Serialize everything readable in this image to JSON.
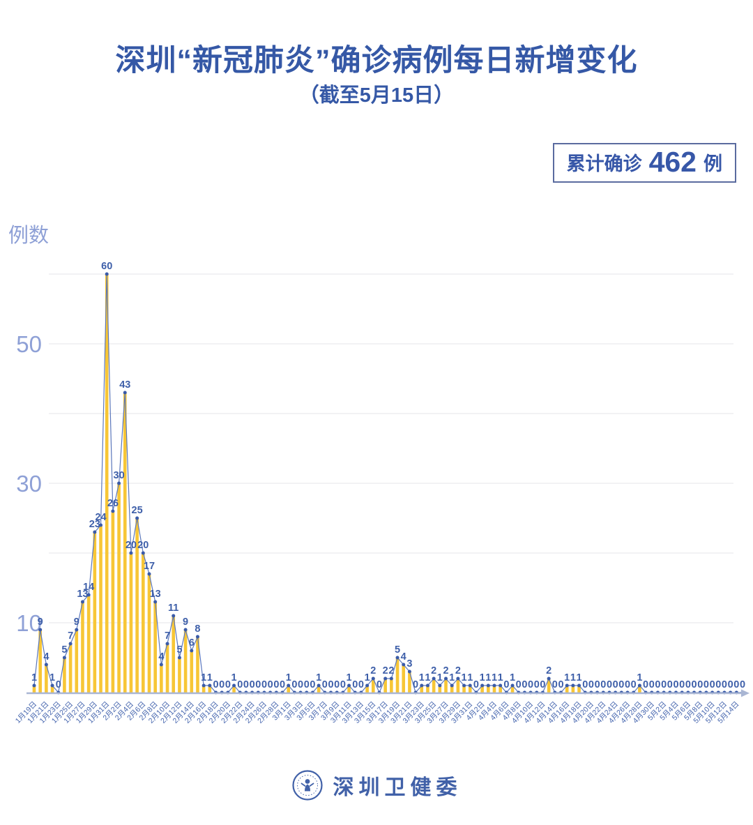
{
  "title": "深圳“新冠肺炎”确诊病例每日新增变化",
  "subtitle": "（截至5月15日）",
  "badge": {
    "prefix": "累计确诊",
    "value": "462",
    "suffix": "例"
  },
  "y_axis_title": "例数",
  "footer": {
    "org": "深圳卫健委",
    "logo": "shenzhen-health-commission-emblem"
  },
  "colors": {
    "title_blue": "#3558A6",
    "label_blue": "#3E5FA9",
    "xlabel_blue": "#4565AE",
    "light_blue": "#8EA0D6",
    "bar_yellow": "#F7C636",
    "line_blue": "#5B77BB",
    "dot_blue": "#3A5BA9",
    "grid_gray": "#E5E6EA",
    "axis_gray": "#A9B6D3",
    "badge_border": "#5A6B9F"
  },
  "chart_data": {
    "type": "bar",
    "title": "深圳“新冠肺炎”确诊病例每日新增变化（截至5月15日）",
    "ylabel": "例数",
    "start_date": "1月19日",
    "end_date": "5月15日",
    "frequency": "daily",
    "values": [
      1,
      9,
      4,
      1,
      0,
      5,
      7,
      9,
      13,
      14,
      23,
      24,
      60,
      26,
      30,
      43,
      20,
      25,
      20,
      17,
      13,
      4,
      7,
      11,
      5,
      9,
      6,
      8,
      1,
      1,
      0,
      0,
      0,
      1,
      0,
      0,
      0,
      0,
      0,
      0,
      0,
      0,
      1,
      0,
      0,
      0,
      0,
      1,
      0,
      0,
      0,
      0,
      1,
      0,
      0,
      1,
      2,
      0,
      2,
      2,
      5,
      4,
      3,
      0,
      1,
      1,
      2,
      1,
      2,
      1,
      2,
      1,
      1,
      0,
      1,
      1,
      1,
      1,
      0,
      1,
      0,
      0,
      0,
      0,
      0,
      2,
      0,
      0,
      1,
      1,
      1,
      0,
      0,
      0,
      0,
      0,
      0,
      0,
      0,
      0,
      1,
      0,
      0,
      0,
      0,
      0,
      0,
      0,
      0,
      0,
      0,
      0,
      0,
      0,
      0,
      0,
      0,
      0
    ],
    "values_total": 462,
    "x_labels_every_2_days": [
      "1月19日",
      "1月21日",
      "1月23日",
      "1月25日",
      "1月27日",
      "1月29日",
      "1月31日",
      "2月2日",
      "2月4日",
      "2月6日",
      "2月8日",
      "2月10日",
      "2月12日",
      "2月14日",
      "2月16日",
      "2月18日",
      "2月20日",
      "2月22日",
      "2月24日",
      "2月26日",
      "2月28日",
      "3月1日",
      "3月3日",
      "3月5日",
      "3月7日",
      "3月9日",
      "3月11日",
      "3月13日",
      "3月15日",
      "3月17日",
      "3月19日",
      "3月21日",
      "3月23日",
      "3月25日",
      "3月27日",
      "3月29日",
      "3月31日",
      "4月2日",
      "4月4日",
      "4月6日",
      "4月8日",
      "4月10日",
      "4月12日",
      "4月14日",
      "4月16日",
      "4月18日",
      "4月20日",
      "4月22日",
      "4月24日",
      "4月26日",
      "4月28日",
      "4月30日",
      "5月2日",
      "5月4日",
      "5月6日",
      "5月8日",
      "5月10日",
      "5月12日",
      "5月14日"
    ],
    "y_ticks": [
      10,
      30,
      50
    ],
    "gridline_values": [
      10,
      20,
      30,
      40,
      50,
      60
    ],
    "ylim": [
      0,
      62
    ],
    "grid": true,
    "legend": false
  }
}
